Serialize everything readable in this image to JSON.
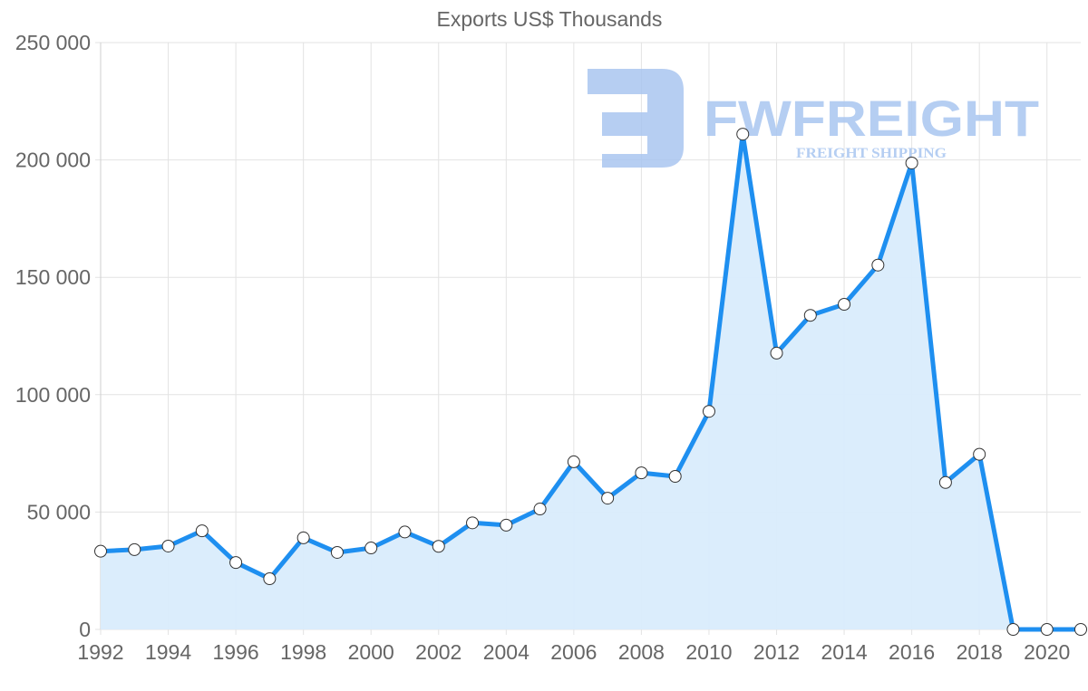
{
  "chart_data": {
    "type": "line",
    "title": "Exports US$ Thousands",
    "xlabel": "",
    "ylabel": "",
    "x": [
      1992,
      1993,
      1994,
      1995,
      1996,
      1997,
      1998,
      1999,
      2000,
      2001,
      2002,
      2003,
      2004,
      2005,
      2006,
      2007,
      2008,
      2009,
      2010,
      2011,
      2012,
      2013,
      2014,
      2015,
      2016,
      2017,
      2018,
      2019,
      2020,
      2021
    ],
    "series": [
      {
        "name": "Exports US$ Thousands",
        "values": [
          33300,
          34000,
          35500,
          42000,
          28500,
          21600,
          39000,
          32800,
          34700,
          41500,
          35400,
          45400,
          44400,
          51300,
          71400,
          55900,
          66700,
          65200,
          92900,
          211000,
          117700,
          133800,
          138500,
          155200,
          198700,
          62600,
          74600,
          0,
          0,
          0
        ]
      }
    ],
    "ylim": [
      0,
      250000
    ],
    "yticks": [
      0,
      50000,
      100000,
      150000,
      200000,
      250000
    ],
    "ytick_labels": [
      "0",
      "50 000",
      "100 000",
      "150 000",
      "200 000",
      "250 000"
    ],
    "xtick_labels": [
      "1992",
      "1994",
      "1996",
      "1998",
      "2000",
      "2002",
      "2004",
      "2006",
      "2008",
      "2010",
      "2012",
      "2014",
      "2016",
      "2018",
      "2020"
    ],
    "grid": true,
    "legend": "none",
    "filled_area": true,
    "colors": {
      "line": "#1e8ff0",
      "fill": "#d9ecfc",
      "grid": "#e3e3e3",
      "marker_fill": "#ffffff",
      "marker_stroke": "#333333",
      "text": "#666666"
    }
  },
  "watermark": {
    "brand": "FWFREIGHT",
    "tagline": "FREIGHT SHIPPING",
    "color": "#a9c6f0"
  }
}
